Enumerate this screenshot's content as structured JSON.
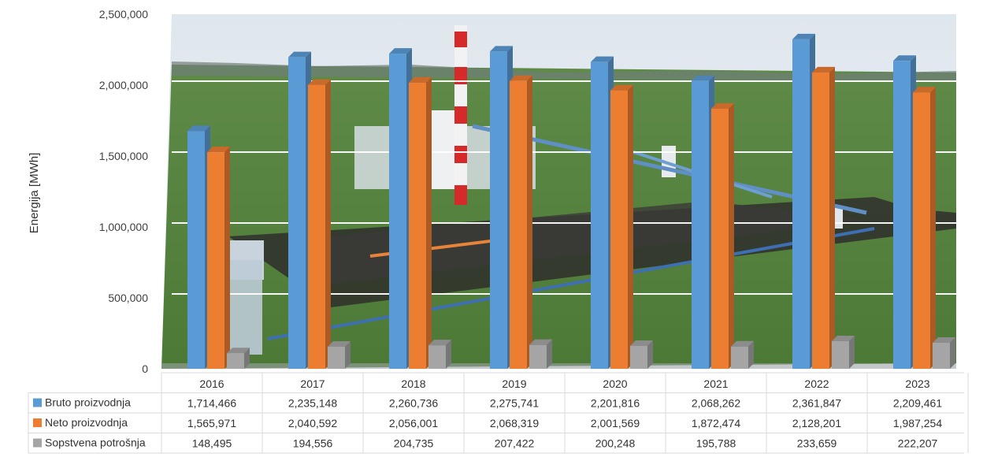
{
  "colors": {
    "bruto": "#5b9bd5",
    "neto": "#ed7d31",
    "sopstvena": "#a5a5a5",
    "grid": "#ffffff",
    "table_border": "#d9d9d9"
  },
  "chart_data": {
    "type": "bar",
    "title": "",
    "xlabel": "",
    "ylabel": "Energija [MWh]",
    "ylim": [
      0,
      2500000
    ],
    "yticks": [
      0,
      500000,
      1000000,
      1500000,
      2000000,
      2500000
    ],
    "ytick_labels": [
      "0",
      "500,000",
      "1,000,000",
      "1,500,000",
      "2,000,000",
      "2,500,000"
    ],
    "categories": [
      "2016",
      "2017",
      "2018",
      "2019",
      "2020",
      "2021",
      "2022",
      "2023"
    ],
    "series": [
      {
        "name": "Bruto proizvodnja",
        "color_key": "bruto",
        "values": [
          1714466,
          2235148,
          2260736,
          2275741,
          2201816,
          2068262,
          2361847,
          2209461
        ],
        "labels": [
          "1,714,466",
          "2,235,148",
          "2,260,736",
          "2,275,741",
          "2,201,816",
          "2,068,262",
          "2,361,847",
          "2,209,461"
        ]
      },
      {
        "name": "Neto proizvodnja",
        "color_key": "neto",
        "values": [
          1565971,
          2040592,
          2056001,
          2068319,
          2001569,
          1872474,
          2128201,
          1987254
        ],
        "labels": [
          "1,565,971",
          "2,040,592",
          "2,056,001",
          "2,068,319",
          "2,001,569",
          "1,872,474",
          "2,128,201",
          "1,987,254"
        ]
      },
      {
        "name": "Sopstvena potrošnja",
        "color_key": "sopstvena",
        "values": [
          148495,
          194556,
          204735,
          207422,
          200248,
          195788,
          233659,
          222207
        ],
        "labels": [
          "148,495",
          "194,556",
          "204,735",
          "207,422",
          "200,248",
          "195,788",
          "233,659",
          "222,207"
        ]
      }
    ],
    "grid": true,
    "legend": "data-table-left",
    "background": "power-plant-photo"
  }
}
